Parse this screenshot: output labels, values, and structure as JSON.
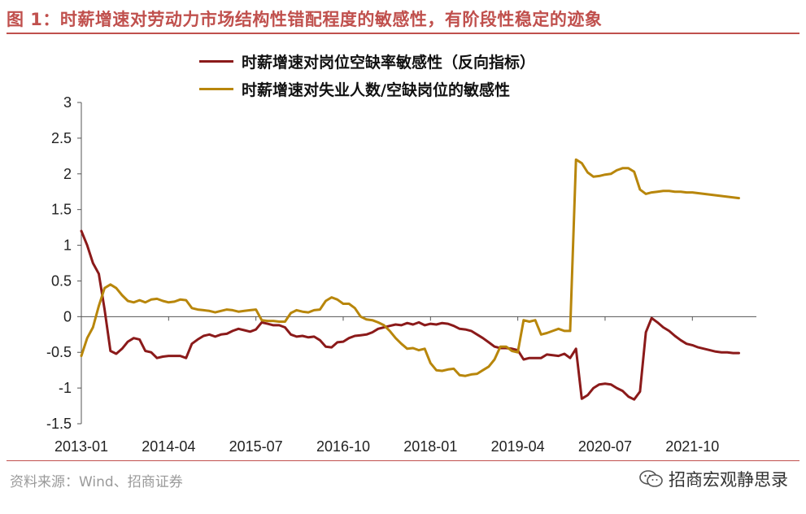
{
  "header": {
    "title": "图 1：时薪增速对劳动力市场结构性错配程度的敏感性，有阶段性稳定的迹象"
  },
  "footer": {
    "source": "资料来源：Wind、招商证券",
    "watermark": "招商宏观静思录",
    "watermark_icon": "wechat-icon"
  },
  "colors": {
    "accent": "#c0504d",
    "series1": "#8b1a1a",
    "series2": "#b8860b"
  },
  "chart_data": {
    "type": "line",
    "title": "",
    "xlabel": "",
    "ylabel": "",
    "ylim": [
      -1.5,
      3
    ],
    "yticks": [
      "3",
      "2.5",
      "2",
      "1.5",
      "1",
      "0.5",
      "0",
      "-0.5",
      "-1",
      "-1.5"
    ],
    "ytick_values": [
      3,
      2.5,
      2,
      1.5,
      1,
      0.5,
      0,
      -0.5,
      -1,
      -1.5
    ],
    "xlim": [
      "2013-01",
      "2022-09"
    ],
    "xticks": [
      "2013-01",
      "2014-04",
      "2015-07",
      "2016-10",
      "2018-01",
      "2019-04",
      "2020-07",
      "2021-10"
    ],
    "grid": false,
    "legend_position": "top-center",
    "series": [
      {
        "name": "时薪增速对岗位空缺率敏感性（反向指标）",
        "color": "#8b1a1a",
        "points": [
          [
            "2013-01",
            1.2
          ],
          [
            "2013-02",
            1.0
          ],
          [
            "2013-03",
            0.75
          ],
          [
            "2013-04",
            0.6
          ],
          [
            "2013-05",
            0.1
          ],
          [
            "2013-06",
            -0.48
          ],
          [
            "2013-07",
            -0.52
          ],
          [
            "2013-08",
            -0.45
          ],
          [
            "2013-09",
            -0.35
          ],
          [
            "2013-10",
            -0.3
          ],
          [
            "2013-11",
            -0.32
          ],
          [
            "2013-12",
            -0.48
          ],
          [
            "2014-01",
            -0.5
          ],
          [
            "2014-02",
            -0.58
          ],
          [
            "2014-03",
            -0.56
          ],
          [
            "2014-04",
            -0.55
          ],
          [
            "2014-05",
            -0.55
          ],
          [
            "2014-06",
            -0.55
          ],
          [
            "2014-07",
            -0.58
          ],
          [
            "2014-08",
            -0.38
          ],
          [
            "2014-09",
            -0.32
          ],
          [
            "2014-10",
            -0.27
          ],
          [
            "2014-11",
            -0.25
          ],
          [
            "2014-12",
            -0.28
          ],
          [
            "2015-01",
            -0.25
          ],
          [
            "2015-02",
            -0.24
          ],
          [
            "2015-03",
            -0.2
          ],
          [
            "2015-04",
            -0.17
          ],
          [
            "2015-05",
            -0.19
          ],
          [
            "2015-06",
            -0.21
          ],
          [
            "2015-07",
            -0.18
          ],
          [
            "2015-08",
            -0.08
          ],
          [
            "2015-09",
            -0.1
          ],
          [
            "2015-10",
            -0.12
          ],
          [
            "2015-11",
            -0.12
          ],
          [
            "2015-12",
            -0.15
          ],
          [
            "2016-01",
            -0.25
          ],
          [
            "2016-02",
            -0.28
          ],
          [
            "2016-03",
            -0.27
          ],
          [
            "2016-04",
            -0.29
          ],
          [
            "2016-05",
            -0.28
          ],
          [
            "2016-06",
            -0.33
          ],
          [
            "2016-07",
            -0.42
          ],
          [
            "2016-08",
            -0.43
          ],
          [
            "2016-09",
            -0.36
          ],
          [
            "2016-10",
            -0.35
          ],
          [
            "2016-11",
            -0.3
          ],
          [
            "2016-12",
            -0.27
          ],
          [
            "2017-01",
            -0.26
          ],
          [
            "2017-02",
            -0.25
          ],
          [
            "2017-03",
            -0.22
          ],
          [
            "2017-04",
            -0.17
          ],
          [
            "2017-05",
            -0.15
          ],
          [
            "2017-06",
            -0.13
          ],
          [
            "2017-07",
            -0.11
          ],
          [
            "2017-08",
            -0.12
          ],
          [
            "2017-09",
            -0.09
          ],
          [
            "2017-10",
            -0.11
          ],
          [
            "2017-11",
            -0.08
          ],
          [
            "2017-12",
            -0.12
          ],
          [
            "2018-01",
            -0.1
          ],
          [
            "2018-02",
            -0.11
          ],
          [
            "2018-03",
            -0.09
          ],
          [
            "2018-04",
            -0.1
          ],
          [
            "2018-05",
            -0.13
          ],
          [
            "2018-06",
            -0.17
          ],
          [
            "2018-07",
            -0.18
          ],
          [
            "2018-08",
            -0.2
          ],
          [
            "2018-09",
            -0.25
          ],
          [
            "2018-10",
            -0.3
          ],
          [
            "2018-11",
            -0.36
          ],
          [
            "2018-12",
            -0.42
          ],
          [
            "2019-01",
            -0.44
          ],
          [
            "2019-02",
            -0.44
          ],
          [
            "2019-03",
            -0.45
          ],
          [
            "2019-04",
            -0.47
          ],
          [
            "2019-05",
            -0.6
          ],
          [
            "2019-06",
            -0.58
          ],
          [
            "2019-07",
            -0.58
          ],
          [
            "2019-08",
            -0.58
          ],
          [
            "2019-09",
            -0.53
          ],
          [
            "2019-10",
            -0.54
          ],
          [
            "2019-11",
            -0.55
          ],
          [
            "2019-12",
            -0.52
          ],
          [
            "2020-01",
            -0.58
          ],
          [
            "2020-02",
            -0.45
          ],
          [
            "2020-03",
            -1.15
          ],
          [
            "2020-04",
            -1.1
          ],
          [
            "2020-05",
            -1.0
          ],
          [
            "2020-06",
            -0.95
          ],
          [
            "2020-07",
            -0.94
          ],
          [
            "2020-08",
            -0.95
          ],
          [
            "2020-09",
            -1.0
          ],
          [
            "2020-10",
            -1.04
          ],
          [
            "2020-11",
            -1.12
          ],
          [
            "2020-12",
            -1.16
          ],
          [
            "2021-01",
            -1.05
          ],
          [
            "2021-02",
            -0.22
          ],
          [
            "2021-03",
            -0.02
          ],
          [
            "2021-04",
            -0.08
          ],
          [
            "2021-05",
            -0.15
          ],
          [
            "2021-06",
            -0.2
          ],
          [
            "2021-07",
            -0.27
          ],
          [
            "2021-08",
            -0.33
          ],
          [
            "2021-09",
            -0.38
          ],
          [
            "2021-10",
            -0.4
          ],
          [
            "2021-11",
            -0.43
          ],
          [
            "2021-12",
            -0.45
          ],
          [
            "2022-01",
            -0.47
          ],
          [
            "2022-02",
            -0.49
          ],
          [
            "2022-03",
            -0.5
          ],
          [
            "2022-04",
            -0.5
          ],
          [
            "2022-05",
            -0.51
          ],
          [
            "2022-06",
            -0.51
          ]
        ]
      },
      {
        "name": "时薪增速对失业人数/空缺岗位的敏感性",
        "color": "#b8860b",
        "points": [
          [
            "2013-01",
            -0.55
          ],
          [
            "2013-02",
            -0.3
          ],
          [
            "2013-03",
            -0.15
          ],
          [
            "2013-04",
            0.15
          ],
          [
            "2013-05",
            0.4
          ],
          [
            "2013-06",
            0.45
          ],
          [
            "2013-07",
            0.4
          ],
          [
            "2013-08",
            0.3
          ],
          [
            "2013-09",
            0.22
          ],
          [
            "2013-10",
            0.2
          ],
          [
            "2013-11",
            0.23
          ],
          [
            "2013-12",
            0.2
          ],
          [
            "2014-01",
            0.24
          ],
          [
            "2014-02",
            0.25
          ],
          [
            "2014-03",
            0.22
          ],
          [
            "2014-04",
            0.2
          ],
          [
            "2014-05",
            0.21
          ],
          [
            "2014-06",
            0.24
          ],
          [
            "2014-07",
            0.23
          ],
          [
            "2014-08",
            0.12
          ],
          [
            "2014-09",
            0.1
          ],
          [
            "2014-10",
            0.09
          ],
          [
            "2014-11",
            0.08
          ],
          [
            "2014-12",
            0.06
          ],
          [
            "2015-01",
            0.08
          ],
          [
            "2015-02",
            0.1
          ],
          [
            "2015-03",
            0.09
          ],
          [
            "2015-04",
            0.07
          ],
          [
            "2015-05",
            0.08
          ],
          [
            "2015-06",
            0.09
          ],
          [
            "2015-07",
            0.1
          ],
          [
            "2015-08",
            -0.05
          ],
          [
            "2015-09",
            -0.06
          ],
          [
            "2015-10",
            -0.06
          ],
          [
            "2015-11",
            -0.07
          ],
          [
            "2015-12",
            -0.07
          ],
          [
            "2016-01",
            0.05
          ],
          [
            "2016-02",
            0.09
          ],
          [
            "2016-03",
            0.07
          ],
          [
            "2016-04",
            0.06
          ],
          [
            "2016-05",
            0.09
          ],
          [
            "2016-06",
            0.1
          ],
          [
            "2016-07",
            0.22
          ],
          [
            "2016-08",
            0.27
          ],
          [
            "2016-09",
            0.24
          ],
          [
            "2016-10",
            0.18
          ],
          [
            "2016-11",
            0.18
          ],
          [
            "2016-12",
            0.12
          ],
          [
            "2017-01",
            0.0
          ],
          [
            "2017-02",
            -0.04
          ],
          [
            "2017-03",
            -0.05
          ],
          [
            "2017-04",
            -0.08
          ],
          [
            "2017-05",
            -0.12
          ],
          [
            "2017-06",
            -0.2
          ],
          [
            "2017-07",
            -0.3
          ],
          [
            "2017-08",
            -0.38
          ],
          [
            "2017-09",
            -0.45
          ],
          [
            "2017-10",
            -0.44
          ],
          [
            "2017-11",
            -0.47
          ],
          [
            "2017-12",
            -0.45
          ],
          [
            "2018-01",
            -0.65
          ],
          [
            "2018-02",
            -0.75
          ],
          [
            "2018-03",
            -0.76
          ],
          [
            "2018-04",
            -0.74
          ],
          [
            "2018-05",
            -0.73
          ],
          [
            "2018-06",
            -0.82
          ],
          [
            "2018-07",
            -0.83
          ],
          [
            "2018-08",
            -0.81
          ],
          [
            "2018-09",
            -0.8
          ],
          [
            "2018-10",
            -0.75
          ],
          [
            "2018-11",
            -0.7
          ],
          [
            "2018-12",
            -0.6
          ],
          [
            "2019-01",
            -0.42
          ],
          [
            "2019-02",
            -0.42
          ],
          [
            "2019-03",
            -0.48
          ],
          [
            "2019-04",
            -0.5
          ],
          [
            "2019-05",
            -0.05
          ],
          [
            "2019-06",
            -0.07
          ],
          [
            "2019-07",
            -0.05
          ],
          [
            "2019-08",
            -0.25
          ],
          [
            "2019-09",
            -0.23
          ],
          [
            "2019-10",
            -0.2
          ],
          [
            "2019-11",
            -0.17
          ],
          [
            "2019-12",
            -0.2
          ],
          [
            "2020-01",
            -0.2
          ],
          [
            "2020-02",
            2.2
          ],
          [
            "2020-03",
            2.15
          ],
          [
            "2020-04",
            2.02
          ],
          [
            "2020-05",
            1.96
          ],
          [
            "2020-06",
            1.97
          ],
          [
            "2020-07",
            1.99
          ],
          [
            "2020-08",
            2.0
          ],
          [
            "2020-09",
            2.05
          ],
          [
            "2020-10",
            2.08
          ],
          [
            "2020-11",
            2.08
          ],
          [
            "2020-12",
            2.03
          ],
          [
            "2021-01",
            1.78
          ],
          [
            "2021-02",
            1.72
          ],
          [
            "2021-03",
            1.74
          ],
          [
            "2021-04",
            1.75
          ],
          [
            "2021-05",
            1.76
          ],
          [
            "2021-06",
            1.76
          ],
          [
            "2021-07",
            1.75
          ],
          [
            "2021-08",
            1.75
          ],
          [
            "2021-09",
            1.74
          ],
          [
            "2021-10",
            1.74
          ],
          [
            "2021-11",
            1.73
          ],
          [
            "2021-12",
            1.72
          ],
          [
            "2022-01",
            1.71
          ],
          [
            "2022-02",
            1.7
          ],
          [
            "2022-03",
            1.69
          ],
          [
            "2022-04",
            1.68
          ],
          [
            "2022-05",
            1.67
          ],
          [
            "2022-06",
            1.66
          ]
        ]
      }
    ]
  }
}
